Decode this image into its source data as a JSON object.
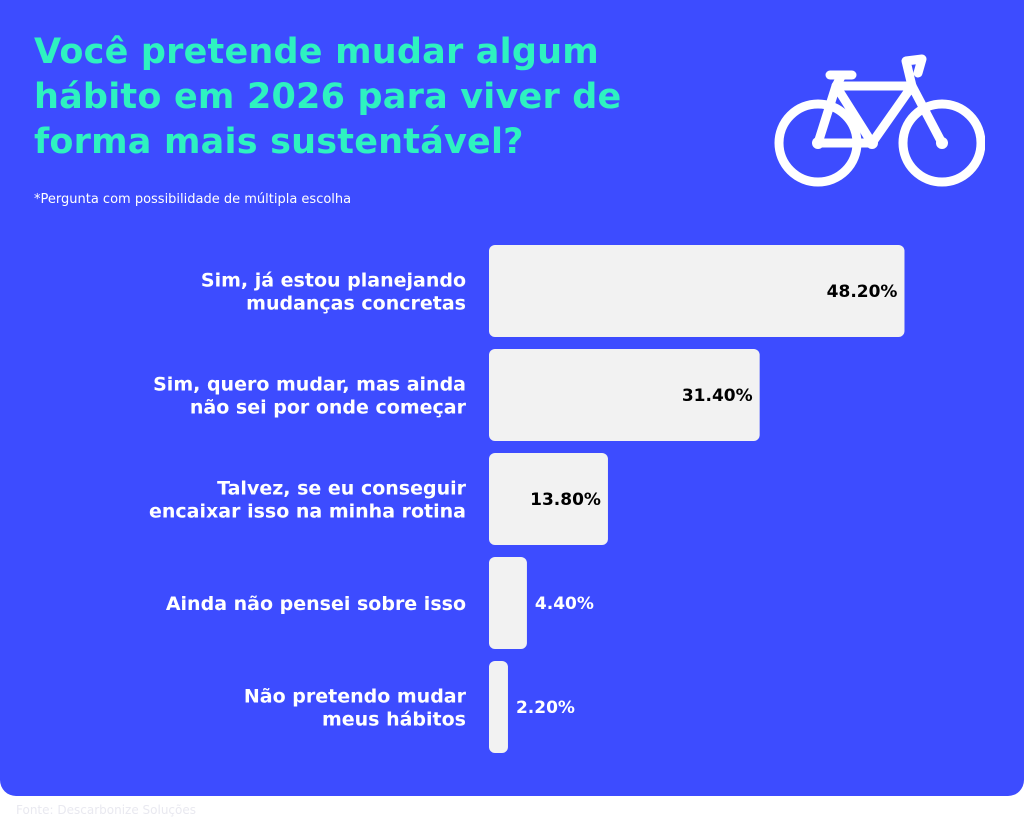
{
  "title": "Você pretende mudar algum hábito em 2026 para viver de forma mais sustentável?",
  "note": "*Pergunta com possibilidade de múltipla escolha",
  "footer": "Fonte: Descarbonize Soluções",
  "icon": "bicycle-icon",
  "colors": {
    "background": "#3d4cff",
    "title": "#2ef2c0",
    "bar": "#f2f2f2",
    "text": "#ffffff"
  },
  "chart_data": {
    "type": "bar",
    "orientation": "horizontal",
    "categories": [
      [
        "Sim, já estou planejando",
        "mudanças concretas"
      ],
      [
        "Sim, quero mudar, mas ainda",
        "não sei por onde começar"
      ],
      [
        "Talvez, se eu conseguir",
        "encaixar isso na minha rotina"
      ],
      [
        "Ainda não pensei sobre isso"
      ],
      [
        "Não pretendo mudar",
        "meus hábitos"
      ]
    ],
    "values": [
      48.2,
      31.4,
      13.8,
      4.4,
      2.2
    ],
    "value_labels": [
      "48.20%",
      "31.40%",
      "13.80%",
      "4.40%",
      "2.20%"
    ],
    "grid": false,
    "legend": "none"
  }
}
